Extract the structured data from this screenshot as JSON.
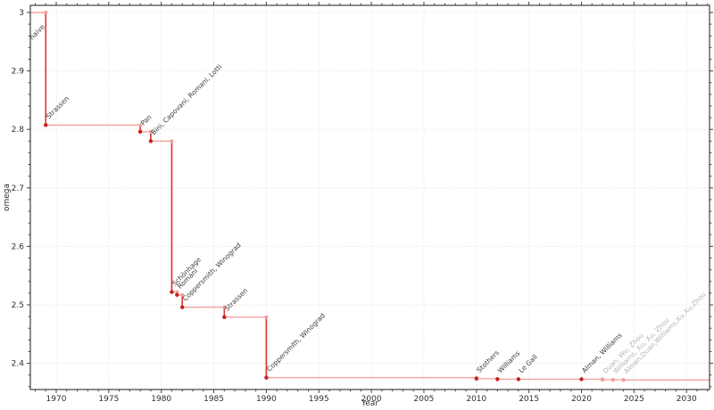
{
  "chart_data": {
    "type": "line",
    "subtype": "step-post",
    "title": "",
    "xlabel": "Year",
    "ylabel": "omega",
    "xlim": [
      1967.536,
      2032.19
    ],
    "ylim": [
      2.3552,
      3.0122
    ],
    "x_major_ticks": [
      "1970",
      "1975",
      "1980",
      "1985",
      "1990",
      "1995",
      "2000",
      "2005",
      "2010",
      "2015",
      "2020",
      "2025",
      "2030"
    ],
    "x_minor_step": 1,
    "y_major_ticks": [
      "2.4",
      "2.5",
      "2.6",
      "2.7",
      "2.8",
      "2.9",
      "3"
    ],
    "y_minor_step": 0.02,
    "grid": "dotted lines at major ticks, both axes",
    "legend": "none",
    "series_start": {
      "label": "naive",
      "omega": 3.0
    },
    "events": [
      {
        "year": 1969,
        "omega": 2.8074,
        "label": "Strassen",
        "established": true
      },
      {
        "year": 1978,
        "omega": 2.796,
        "label": "Pan",
        "established": true
      },
      {
        "year": 1979,
        "omega": 2.78,
        "label": "Bini, Capovani, Romani, Lotti",
        "established": true
      },
      {
        "year": 1981,
        "omega": 2.522,
        "label": "Schönhage",
        "established": true
      },
      {
        "year": 1981.5,
        "omega": 2.517,
        "label": "Romani",
        "established": true
      },
      {
        "year": 1982,
        "omega": 2.496,
        "label": "Coppersmith, Winograd",
        "established": true
      },
      {
        "year": 1986,
        "omega": 2.479,
        "label": "Strassen",
        "established": true
      },
      {
        "year": 1990,
        "omega": 2.3755,
        "label": "Coppersmith, Winograd",
        "established": true
      },
      {
        "year": 2010,
        "omega": 2.3737,
        "label": "Stothers",
        "established": true
      },
      {
        "year": 2012,
        "omega": 2.3729,
        "label": "Williams",
        "established": true
      },
      {
        "year": 2014,
        "omega": 2.3728639,
        "label": "Le Gall",
        "established": true
      },
      {
        "year": 2020,
        "omega": 2.3728596,
        "label": "Alman, Williams",
        "established": true
      },
      {
        "year": 2022,
        "omega": 2.37188,
        "label": "Duan, Wu, Zhou",
        "established": false
      },
      {
        "year": 2023,
        "omega": 2.371866,
        "label": "Williams, Xu, Xu, Zhou",
        "established": false
      },
      {
        "year": 2024,
        "omega": 2.371552,
        "label": "Alman,Duan,Williams,Xu,Xu,Zhou",
        "established": false
      }
    ]
  },
  "colors": {
    "background": "#ffffff",
    "step_line": "#f2a49f",
    "drop_line": "#da3832",
    "marker_established": "#c4221f",
    "marker_light": "#f0a09b",
    "label_dark": "#3b3b3b",
    "label_light": "#b4b4b4",
    "axis": "#3f3f3f",
    "tick_text": "#2f2f2f",
    "grid": "#d8d8d8"
  }
}
